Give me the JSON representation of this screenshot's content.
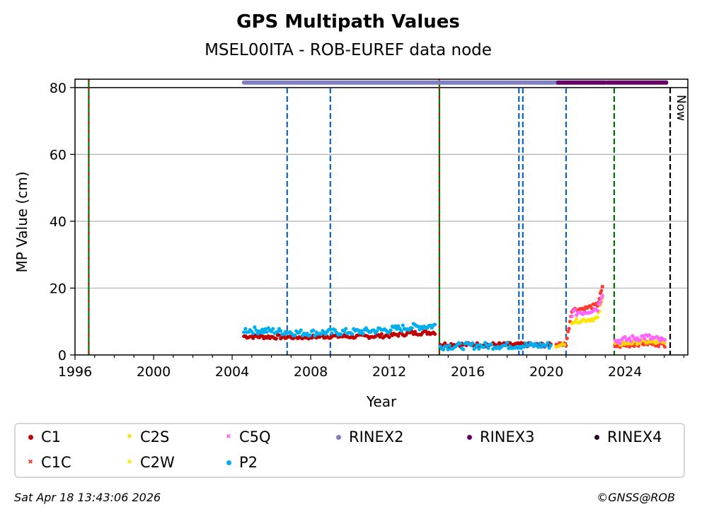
{
  "chart_data": {
    "type": "scatter",
    "title": "GPS Multipath Values",
    "subtitle": "MSEL00ITA - ROB-EUREF data node",
    "xlabel": "Year",
    "ylabel": "MP Value (cm)",
    "xlim": [
      1996,
      2027.2
    ],
    "ylim": [
      0,
      82.5
    ],
    "x_ticks": [
      1996,
      2000,
      2004,
      2008,
      2012,
      2016,
      2020,
      2024
    ],
    "y_ticks": [
      0,
      20,
      40,
      60,
      80
    ],
    "grid": "horizontal",
    "now_label": "Now",
    "colors": {
      "C1": "#c00000",
      "C1C": "#ff3b2f",
      "C2S": "#ffd400",
      "C2W": "#ffe600",
      "C5Q": "#ff66ff",
      "P2": "#00aeef",
      "RINEX2": "#8080c0",
      "RINEX3": "#660066",
      "RINEX4": "#220022",
      "event_blue": "#1060c0",
      "event_green": "#007000",
      "event_red": "#e00000",
      "now_line": "#000000"
    },
    "series": [
      {
        "name": "C1",
        "marker": "dot",
        "segments": [
          {
            "x": [
              2004.6,
              2006,
              2007.5,
              2009,
              2010.5,
              2012,
              2013,
              2014.4
            ],
            "y": [
              5.6,
              5.4,
              5.3,
              5.6,
              5.5,
              5.8,
              6.5,
              6.8
            ]
          },
          {
            "x": [
              2014.6,
              2016,
              2018,
              2020.3
            ],
            "y": [
              3.2,
              3.1,
              3.1,
              3.0
            ]
          }
        ]
      },
      {
        "name": "C1C",
        "marker": "x",
        "segments": [
          {
            "x": [
              2020.5,
              2021,
              2021.3,
              2022,
              2022.6,
              2022.9
            ],
            "y": [
              3.2,
              3.3,
              13.5,
              14,
              15,
              21
            ]
          },
          {
            "x": [
              2023.5,
              2024,
              2025,
              2026.1
            ],
            "y": [
              2.7,
              2.8,
              3.5,
              3.0
            ]
          }
        ]
      },
      {
        "name": "C2S",
        "marker": "x",
        "segments": [
          {
            "x": [
              2020.5,
              2021
            ],
            "y": [
              3.0,
              3.0
            ]
          },
          {
            "x": [
              2023.5,
              2024,
              2025,
              2026.1
            ],
            "y": [
              3.2,
              3.5,
              4.0,
              3.5
            ]
          }
        ]
      },
      {
        "name": "C2W",
        "marker": "x",
        "segments": [
          {
            "x": [
              2021.3,
              2022,
              2022.6,
              2022.9
            ],
            "y": [
              10,
              10.5,
              11,
              18
            ]
          }
        ]
      },
      {
        "name": "C5Q",
        "marker": "x",
        "segments": [
          {
            "x": [
              2021.3,
              2022,
              2022.6,
              2022.9
            ],
            "y": [
              12.5,
              13,
              14,
              19.5
            ]
          },
          {
            "x": [
              2023.5,
              2024,
              2025,
              2026.1
            ],
            "y": [
              4.2,
              4.5,
              5.5,
              4.0
            ]
          }
        ]
      },
      {
        "name": "P2",
        "marker": "dot",
        "segments": [
          {
            "x": [
              2004.6,
              2006,
              2007.5,
              2009,
              2010.5,
              2012,
              2013,
              2014.4
            ],
            "y": [
              7.5,
              7.2,
              6.6,
              6.8,
              7.0,
              7.6,
              8.3,
              8.8
            ]
          },
          {
            "x": [
              2014.6,
              2016,
              2018,
              2020.3
            ],
            "y": [
              2.6,
              2.7,
              2.8,
              2.9
            ]
          }
        ]
      }
    ],
    "rinex_bars": [
      {
        "name": "RINEX2",
        "start": 2004.6,
        "end": 2020.6,
        "y": 81.5
      },
      {
        "name": "RINEX3",
        "start": 2020.6,
        "end": 2023.0,
        "y": 81.5
      },
      {
        "name": "RINEX3",
        "start": 2023.1,
        "end": 2026.1,
        "y": 81.5
      }
    ],
    "event_lines": [
      {
        "x": 1996.7,
        "style": "red-green"
      },
      {
        "x": 2006.8,
        "style": "blue"
      },
      {
        "x": 2009.0,
        "style": "blue"
      },
      {
        "x": 2014.55,
        "style": "red-green"
      },
      {
        "x": 2018.6,
        "style": "blue"
      },
      {
        "x": 2018.8,
        "style": "blue"
      },
      {
        "x": 2021.0,
        "style": "blue"
      },
      {
        "x": 2023.45,
        "style": "green"
      },
      {
        "x": 2026.3,
        "style": "now"
      }
    ],
    "legend": {
      "placement": "bottom",
      "entries": [
        {
          "label": "C1",
          "marker": "dot",
          "color": "#c00000"
        },
        {
          "label": "C1C",
          "marker": "x",
          "color": "#ff3b2f"
        },
        {
          "label": "C2S",
          "marker": "x",
          "color": "#ffd400"
        },
        {
          "label": "C2W",
          "marker": "x",
          "color": "#ffe600"
        },
        {
          "label": "C5Q",
          "marker": "x",
          "color": "#ff66ff"
        },
        {
          "label": "P2",
          "marker": "dot",
          "color": "#00aeef"
        },
        {
          "label": "RINEX2",
          "marker": "dot",
          "color": "#8080c0"
        },
        {
          "label": "RINEX3",
          "marker": "dot",
          "color": "#660066"
        },
        {
          "label": "RINEX4",
          "marker": "dot",
          "color": "#220022"
        }
      ]
    }
  },
  "footer": {
    "timestamp": "Sat Apr 18 13:43:06 2026",
    "copyright": "©GNSS@ROB"
  }
}
